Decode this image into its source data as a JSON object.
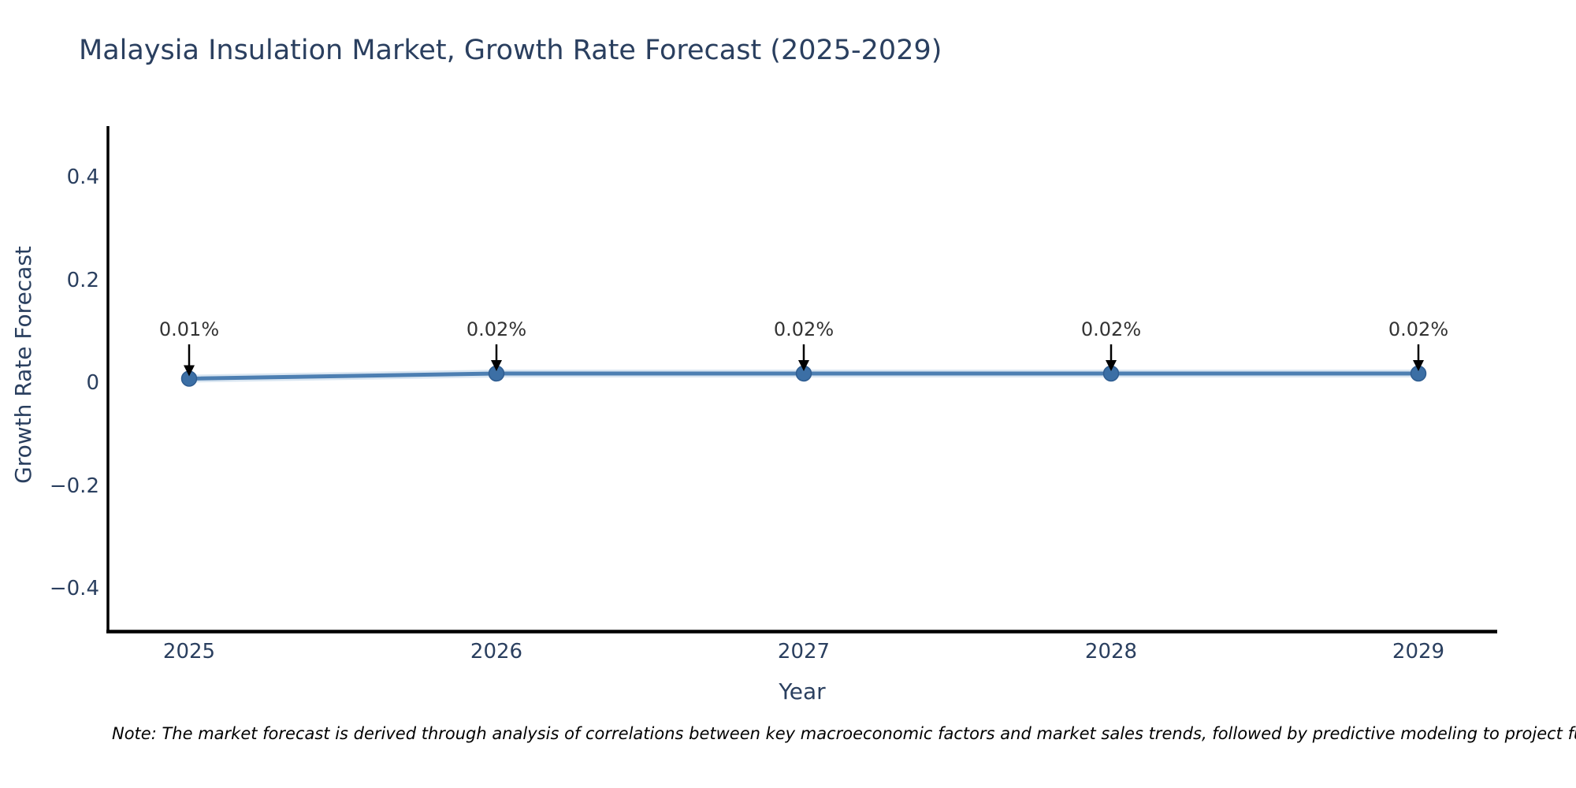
{
  "chart_data": {
    "type": "line",
    "title": "Malaysia Insulation Market, Growth Rate Forecast (2025-2029)",
    "xlabel": "Year",
    "ylabel": "Growth Rate Forecast",
    "x": [
      2025,
      2026,
      2027,
      2028,
      2029
    ],
    "xtick_labels": [
      "2025",
      "2026",
      "2027",
      "2028",
      "2029"
    ],
    "series": [
      {
        "name": "Growth Rate Forecast",
        "values": [
          0.01,
          0.02,
          0.02,
          0.02,
          0.02
        ]
      }
    ],
    "point_annotations": [
      "0.01%",
      "0.02%",
      "0.02%",
      "0.02%",
      "0.02%"
    ],
    "ylim": [
      -0.49,
      0.49
    ],
    "yticks": [
      0.4,
      0.2,
      0,
      -0.2,
      -0.4
    ],
    "ytick_labels": [
      "0.4",
      "0.2",
      "0",
      "−0.2",
      "−0.4"
    ],
    "grid": false,
    "legend": "none",
    "marker_style": "circle",
    "colors": {
      "line": "#4d7fb2",
      "line_halo": "#bdd3e8",
      "marker": "#3c6fa5",
      "marker_edge": "#2f5d91",
      "axis": "#000000",
      "text": "#2a3f5f",
      "annotation_text": "#333333",
      "arrow": "#000000",
      "background": "#ffffff"
    },
    "note": "Note: The market forecast is derived through analysis of correlations between key macroeconomic factors and market sales trends, followed by predictive modeling to project future sa"
  }
}
